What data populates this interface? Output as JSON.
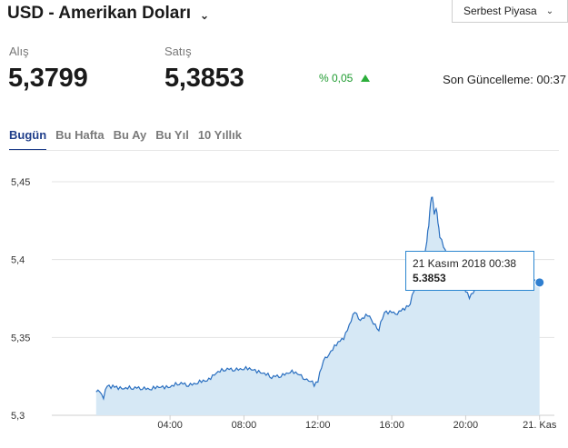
{
  "header": {
    "title": "USD - Amerikan Doları",
    "dropdown_icon": "chevron-down-icon"
  },
  "market_select": {
    "selected": "Serbest Piyasa"
  },
  "quote": {
    "bid_label": "Alış",
    "bid_value": "5,3799",
    "ask_label": "Satış",
    "ask_value": "5,3853",
    "change_text": "% 0,05",
    "change_direction": "up",
    "last_update": "Son Güncelleme: 00:37"
  },
  "colors": {
    "accent": "#1f3e8a",
    "positive": "#2bae3a",
    "series": "#2a6fc0",
    "area": "#d6e8f5",
    "tooltip_border": "#2b86d0"
  },
  "tabs": [
    {
      "label": "Bugün",
      "active": true
    },
    {
      "label": "Bu Hafta",
      "active": false
    },
    {
      "label": "Bu Ay",
      "active": false
    },
    {
      "label": "Bu Yıl",
      "active": false
    },
    {
      "label": "10 Yıllık",
      "active": false
    }
  ],
  "tooltip": {
    "date": "21 Kasım 2018 00:38",
    "value": "5.3853"
  },
  "chart_data": {
    "type": "area",
    "y_ticks": [
      "5,45",
      "5,4",
      "5,35",
      "5,3"
    ],
    "x_ticks": [
      "04:00",
      "08:00",
      "12:00",
      "16:00",
      "20:00",
      "21. Kas"
    ],
    "ylim": [
      5.3,
      5.45
    ],
    "grid": true,
    "series": [
      {
        "x_hours": [
          0,
          0.2,
          0.4,
          0.6,
          0.8,
          1.0,
          1.5,
          2.0,
          2.5,
          3.0,
          3.5,
          4.0,
          4.5,
          5.0,
          5.5,
          6.0,
          6.5,
          7.0,
          7.5,
          8.0,
          8.5,
          9.0,
          9.5,
          10.0,
          10.5,
          11.0,
          11.3,
          11.6,
          11.8,
          12.0,
          12.3,
          12.6,
          13.0,
          13.4,
          13.8,
          14.0,
          14.3,
          14.7,
          15.0,
          15.3,
          15.6,
          16.0,
          16.3,
          16.7,
          17.0,
          17.3,
          17.6,
          17.9,
          18.0,
          18.1,
          18.2,
          18.3,
          18.4,
          18.5,
          18.6,
          18.8,
          19.0,
          19.3,
          19.6,
          20.0,
          20.2,
          20.5,
          20.8,
          21.0,
          21.3,
          21.6,
          22.0,
          22.3,
          22.6,
          23.0,
          23.3,
          23.6,
          24.0
        ],
        "values": [
          5.315,
          5.316,
          5.311,
          5.32,
          5.318,
          5.318,
          5.318,
          5.317,
          5.318,
          5.317,
          5.318,
          5.319,
          5.32,
          5.32,
          5.321,
          5.322,
          5.328,
          5.329,
          5.33,
          5.33,
          5.329,
          5.328,
          5.324,
          5.326,
          5.328,
          5.326,
          5.324,
          5.322,
          5.32,
          5.322,
          5.335,
          5.34,
          5.345,
          5.35,
          5.361,
          5.366,
          5.362,
          5.364,
          5.36,
          5.355,
          5.366,
          5.367,
          5.365,
          5.369,
          5.372,
          5.384,
          5.392,
          5.412,
          5.423,
          5.437,
          5.44,
          5.43,
          5.433,
          5.425,
          5.415,
          5.408,
          5.403,
          5.397,
          5.392,
          5.38,
          5.375,
          5.382,
          5.388,
          5.393,
          5.395,
          5.388,
          5.393,
          5.391,
          5.389,
          5.388,
          5.386,
          5.388,
          5.3853
        ]
      }
    ]
  }
}
